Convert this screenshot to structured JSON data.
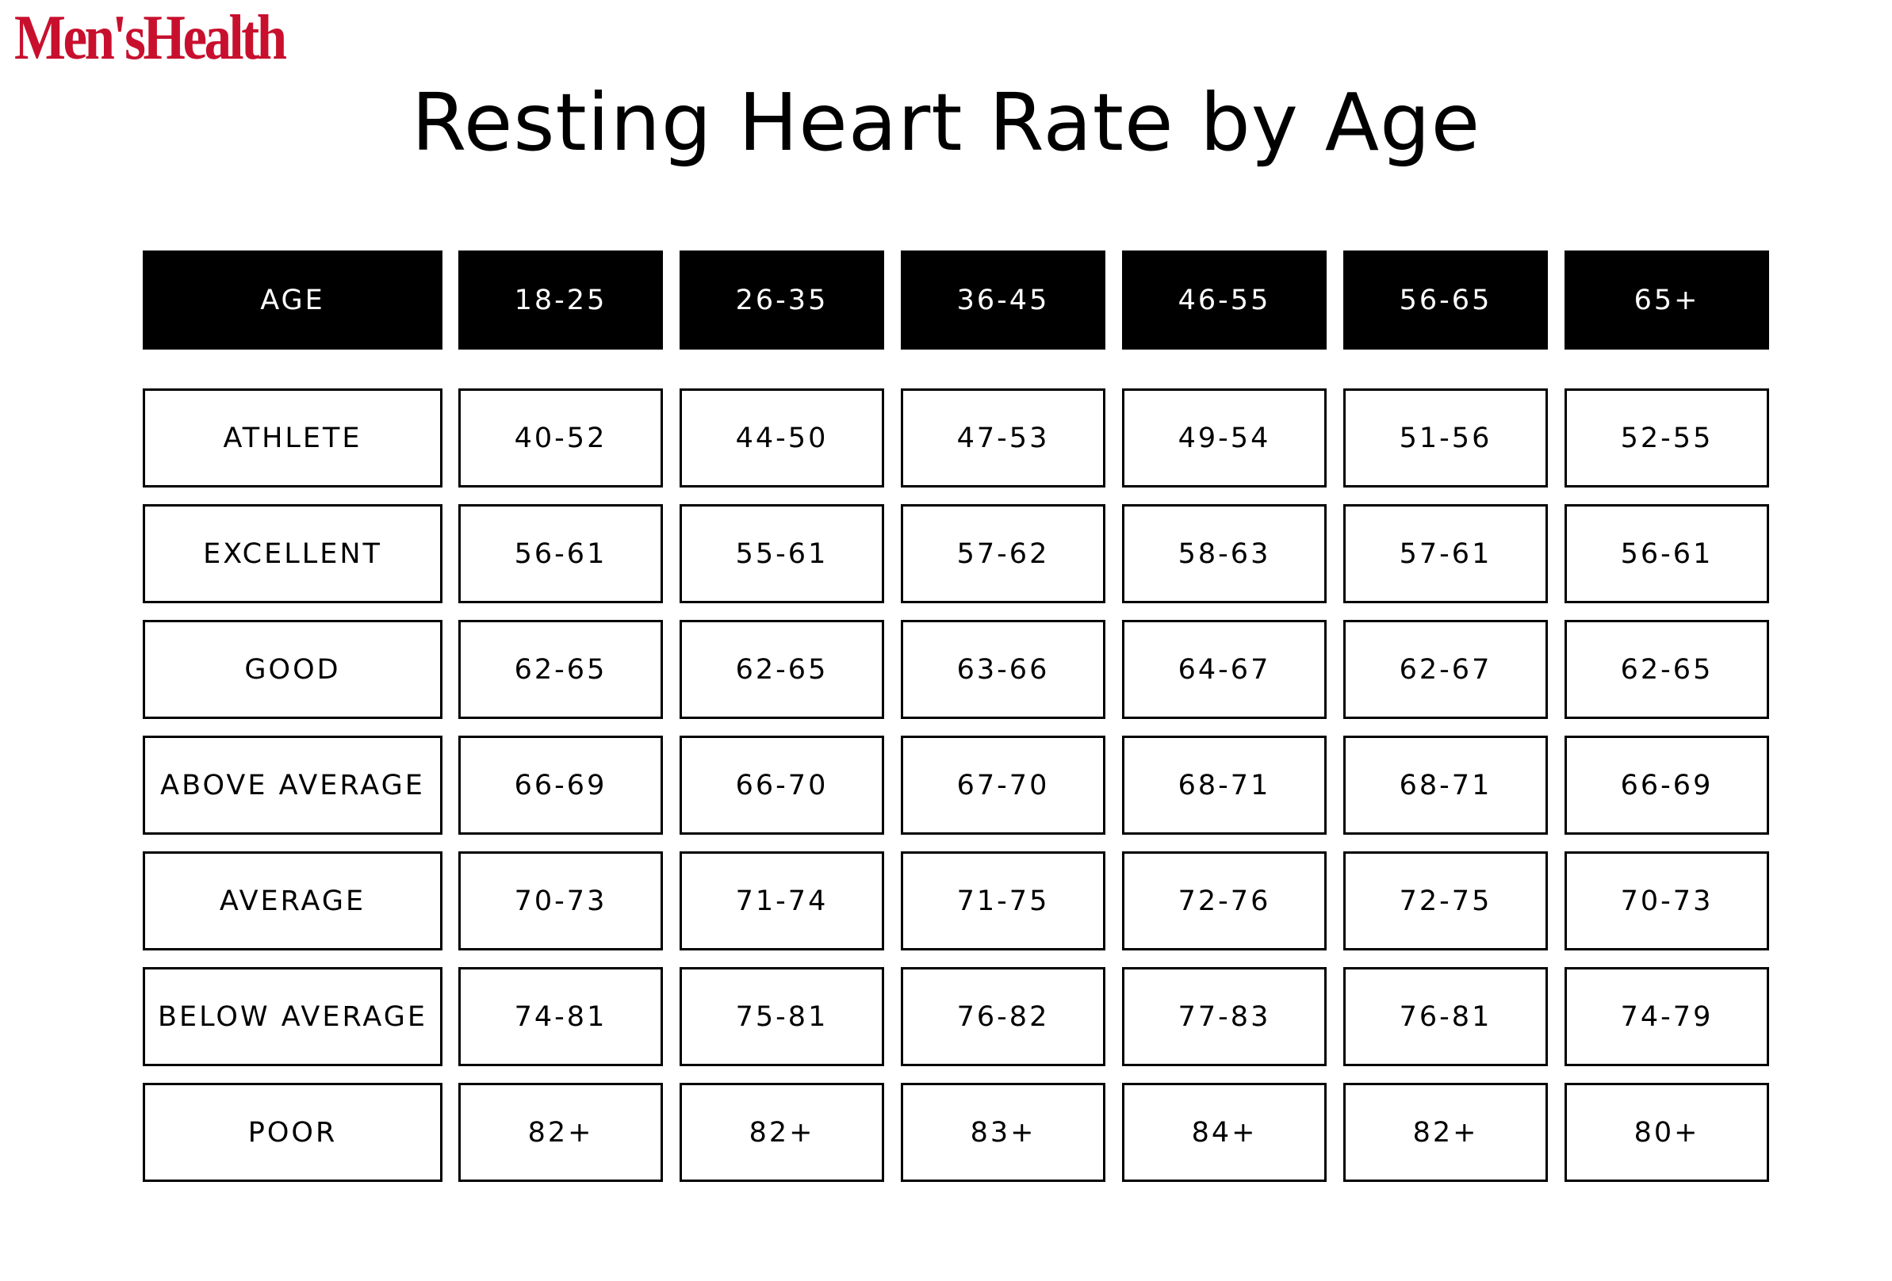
{
  "brand": {
    "logo_text": "Men'sHealth",
    "logo_color": "#c8102e"
  },
  "chart_data": {
    "type": "table",
    "title": "Resting Heart Rate by Age",
    "header_label": "AGE",
    "columns": [
      "18-25",
      "26-35",
      "36-45",
      "46-55",
      "56-65",
      "65+"
    ],
    "rows": [
      {
        "label": "ATHLETE",
        "values": [
          "40-52",
          "44-50",
          "47-53",
          "49-54",
          "51-56",
          "52-55"
        ]
      },
      {
        "label": "EXCELLENT",
        "values": [
          "56-61",
          "55-61",
          "57-62",
          "58-63",
          "57-61",
          "56-61"
        ]
      },
      {
        "label": "GOOD",
        "values": [
          "62-65",
          "62-65",
          "63-66",
          "64-67",
          "62-67",
          "62-65"
        ]
      },
      {
        "label": "ABOVE AVERAGE",
        "values": [
          "66-69",
          "66-70",
          "67-70",
          "68-71",
          "68-71",
          "66-69"
        ]
      },
      {
        "label": "AVERAGE",
        "values": [
          "70-73",
          "71-74",
          "71-75",
          "72-76",
          "72-75",
          "70-73"
        ]
      },
      {
        "label": "BELOW AVERAGE",
        "values": [
          "74-81",
          "75-81",
          "76-82",
          "77-83",
          "76-81",
          "74-79"
        ]
      },
      {
        "label": "POOR",
        "values": [
          "82+",
          "82+",
          "83+",
          "84+",
          "82+",
          "80+"
        ]
      }
    ],
    "header_background": "#000000",
    "header_text_color": "#ffffff",
    "cell_border_color": "#000000"
  }
}
